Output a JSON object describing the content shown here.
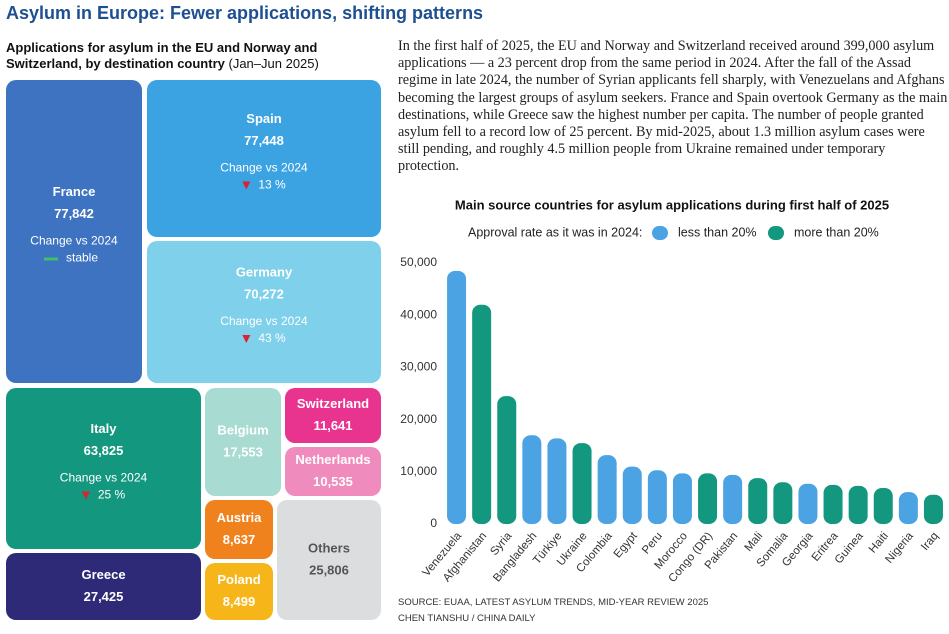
{
  "title": "Asylum in Europe: Fewer applications, shifting patterns",
  "text": "In the first half of 2025, the EU and Norway and Switzerland received around 399,000 asylum applications — a 23 percent drop from the same period in 2024. After the fall of the Assad regime in late 2024, the number of Syrian applicants fell sharply, with Venezuelans and Afghans becoming the largest groups of asylum seekers. France and Spain overtook Germany as the main destinations, while Greece saw the highest number per capita. The number of people granted asylum fell to a record low of 25 percent. By mid-2025, about 1.3 million asylum cases were still pending, and roughly 4.5 million people from Ukraine remained under temporary protection.",
  "source": [
    "SOURCE: EUAA, LATEST ASYLUM TRENDS, MID-YEAR REVIEW 2025",
    "CHEN TIANSHU / CHINA DAILY"
  ],
  "chart_data": [
    {
      "type": "treemap",
      "title": "Applications for asylum in the EU and Norway and Switzerland, by destination country",
      "subtitle": "(Jan–Jun 2025)",
      "change_title": "Change vs 2024",
      "categories": [
        "France",
        "Spain",
        "Germany",
        "Italy",
        "Greece",
        "Belgium",
        "Switzerland",
        "Netherlands",
        "Austria",
        "Poland",
        "Others"
      ],
      "values": [
        77842,
        77448,
        70272,
        63825,
        27425,
        17553,
        11641,
        10535,
        8637,
        8499,
        25806
      ],
      "value_labels": [
        "77,842",
        "77,448",
        "70,272",
        "63,825",
        "27,425",
        "17,553",
        "11,641",
        "10,535",
        "8,637",
        "8,499",
        "25,806"
      ],
      "changes": [
        null,
        13,
        43,
        25,
        null,
        null,
        null,
        null,
        null,
        null,
        null
      ],
      "change_labels": [
        "stable",
        "13 %",
        "43 %",
        "25 %",
        null,
        null,
        null,
        null,
        null,
        null,
        null
      ],
      "colors": [
        "#3e73c1",
        "#3ba3e2",
        "#7fd0ea",
        "#13977e",
        "#2e2a78",
        "#a8dbd2",
        "#e8338f",
        "#f08bbd",
        "#f0821e",
        "#f6b61a",
        "#dcdddf"
      ]
    },
    {
      "type": "bar",
      "title": "Main source countries for asylum applications during first half of 2025",
      "legend_title": "Approval rate as it was in 2024:",
      "categories": [
        "Venezuela",
        "Afghanistan",
        "Syria",
        "Bangladesh",
        "Türkiye",
        "Ukraine",
        "Colombia",
        "Egypt",
        "Peru",
        "Morocco",
        "Congo (DR)",
        "Pakistan",
        "Mali",
        "Somalia",
        "Georgia",
        "Eritrea",
        "Guinea",
        "Haiti",
        "Nigeria",
        "Iraq"
      ],
      "series": [
        {
          "name": "less than 20%",
          "color": "#4ba3e3",
          "values": [
            48500,
            null,
            null,
            17000,
            16400,
            null,
            13200,
            11000,
            10300,
            9700,
            null,
            9400,
            null,
            null,
            7700,
            null,
            null,
            null,
            6100,
            null
          ]
        },
        {
          "name": "more than 20%",
          "color": "#13977e",
          "values": [
            null,
            42000,
            24500,
            null,
            null,
            15500,
            null,
            null,
            null,
            null,
            9700,
            null,
            8800,
            8000,
            null,
            7500,
            7300,
            6900,
            null,
            5600
          ]
        }
      ],
      "ylim": [
        0,
        50000
      ],
      "yticks": [
        0,
        {
          "value": 10000,
          "label": "10,000"
        },
        {
          "value": 20000,
          "label": "20,000"
        },
        {
          "value": 30000,
          "label": "30,000"
        },
        {
          "value": 40000,
          "label": "40,000"
        },
        {
          "value": 50000,
          "label": "50,000"
        }
      ],
      "grid": false
    }
  ]
}
